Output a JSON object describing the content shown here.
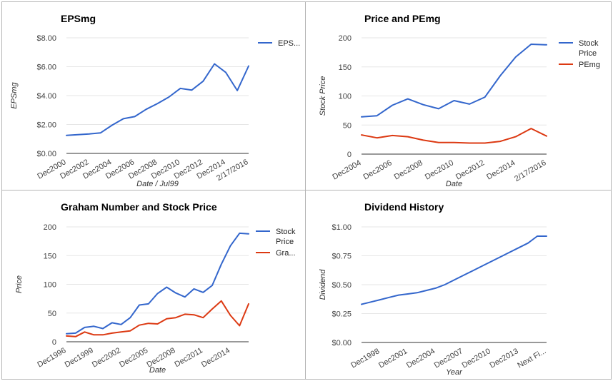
{
  "chart_data": [
    {
      "type": "line",
      "title": "EPSmg",
      "xlabel": "Date / Jul99",
      "ylabel": "EPSmg",
      "ylim": [
        0,
        8
      ],
      "yticks": [
        "$0.00",
        "$2.00",
        "$4.00",
        "$6.00",
        "$8.00"
      ],
      "ytick_values": [
        0,
        2,
        4,
        6,
        8
      ],
      "x_tick_labels": [
        "Dec2000",
        "Dec2002",
        "Dec2004",
        "Dec2006",
        "Dec2008",
        "Dec2010",
        "Dec2012",
        "Dec2014",
        "2/17/2016"
      ],
      "x": [
        "Dec2000",
        "Dec2001",
        "Dec2002",
        "Dec2003",
        "Dec2004",
        "Dec2005",
        "Dec2006",
        "Dec2007",
        "Dec2008",
        "Dec2009",
        "Dec2010",
        "Dec2011",
        "Dec2012",
        "Dec2013",
        "Dec2014",
        "Dec2015",
        "2/17/2016"
      ],
      "series": [
        {
          "name": "EPS...",
          "color": "#3366cc",
          "values": [
            1.25,
            1.3,
            1.35,
            1.42,
            1.95,
            2.4,
            2.55,
            3.05,
            3.45,
            3.9,
            4.5,
            4.38,
            5.0,
            6.2,
            5.6,
            4.35,
            6.05
          ]
        }
      ],
      "legend": "right",
      "grid": true
    },
    {
      "type": "line",
      "title": "Price and PEmg",
      "xlabel": "Date",
      "ylabel": "Stock Price",
      "ylim": [
        0,
        200
      ],
      "yticks": [
        "0",
        "50",
        "100",
        "150",
        "200"
      ],
      "ytick_values": [
        0,
        50,
        100,
        150,
        200
      ],
      "x_tick_labels": [
        "Dec2004",
        "Dec2006",
        "Dec2008",
        "Dec2010",
        "Dec2012",
        "Dec2014",
        "2/17/2016"
      ],
      "x": [
        "Dec2004",
        "Dec2005",
        "Dec2006",
        "Dec2007",
        "Dec2008",
        "Dec2009",
        "Dec2010",
        "Dec2011",
        "Dec2012",
        "Dec2013",
        "Dec2014",
        "Dec2015",
        "2/17/2016"
      ],
      "series": [
        {
          "name": "Stock Price",
          "color": "#3366cc",
          "values": [
            64,
            66,
            84,
            95,
            85,
            78,
            92,
            86,
            98,
            135,
            167,
            189,
            188
          ]
        },
        {
          "name": "PEmg",
          "color": "#dc3912",
          "values": [
            33,
            28,
            32,
            30,
            24,
            20,
            20,
            19,
            19,
            22,
            30,
            44,
            31
          ]
        }
      ],
      "legend": "right",
      "grid": true
    },
    {
      "type": "line",
      "title": "Graham Number and Stock Price",
      "xlabel": "Date",
      "ylabel": "Price",
      "ylim": [
        0,
        200
      ],
      "yticks": [
        "0",
        "50",
        "100",
        "150",
        "200"
      ],
      "ytick_values": [
        0,
        50,
        100,
        150,
        200
      ],
      "x_tick_labels": [
        "Dec1996",
        "Dec1999",
        "Dec2002",
        "Dec2005",
        "Dec2008",
        "Dec2011",
        "Dec2014"
      ],
      "x": [
        "Dec1996",
        "Dec1997",
        "Dec1998",
        "Dec1999",
        "Dec2000",
        "Dec2001",
        "Dec2002",
        "Dec2003",
        "Dec2004",
        "Dec2005",
        "Dec2006",
        "Dec2007",
        "Dec2008",
        "Dec2009",
        "Dec2010",
        "Dec2011",
        "Dec2012",
        "Dec2013",
        "Dec2014",
        "Dec2015",
        "2/17/2016"
      ],
      "series": [
        {
          "name": "Stock Price",
          "color": "#3366cc",
          "values": [
            14,
            15,
            25,
            27,
            23,
            33,
            30,
            42,
            64,
            66,
            84,
            95,
            85,
            78,
            92,
            86,
            98,
            135,
            167,
            189,
            188
          ]
        },
        {
          "name": "Gra...",
          "color": "#dc3912",
          "values": [
            10,
            9,
            17,
            12,
            12,
            15,
            17,
            19,
            29,
            32,
            31,
            40,
            42,
            48,
            47,
            42,
            57,
            71,
            46,
            28,
            66
          ]
        }
      ],
      "legend": "right",
      "grid": true
    },
    {
      "type": "line",
      "title": "Dividend History",
      "xlabel": "Year",
      "ylabel": "Dividend",
      "ylim": [
        0,
        1
      ],
      "yticks": [
        "$0.00",
        "$0.25",
        "$0.50",
        "$0.75",
        "$1.00"
      ],
      "ytick_values": [
        0,
        0.25,
        0.5,
        0.75,
        1.0
      ],
      "x_tick_labels": [
        "Dec1998",
        "Dec2001",
        "Dec2004",
        "Dec2007",
        "Dec2010",
        "Dec2013",
        "Next Fi..."
      ],
      "x": [
        "Dec1996",
        "Dec1997",
        "Dec1998",
        "Dec1999",
        "Dec2000",
        "Dec2001",
        "Dec2002",
        "Dec2003",
        "Dec2004",
        "Dec2005",
        "Dec2006",
        "Dec2007",
        "Dec2008",
        "Dec2009",
        "Dec2010",
        "Dec2011",
        "Dec2012",
        "Dec2013",
        "Dec2014",
        "Dec2015",
        "Next Fi..."
      ],
      "series": [
        {
          "name": "Dividend",
          "color": "#3366cc",
          "values": [
            0.33,
            0.35,
            0.37,
            0.39,
            0.41,
            0.42,
            0.43,
            0.45,
            0.47,
            0.5,
            0.54,
            0.58,
            0.62,
            0.66,
            0.7,
            0.74,
            0.78,
            0.82,
            0.86,
            0.92,
            0.92
          ]
        }
      ],
      "legend": "none",
      "grid": true
    }
  ]
}
